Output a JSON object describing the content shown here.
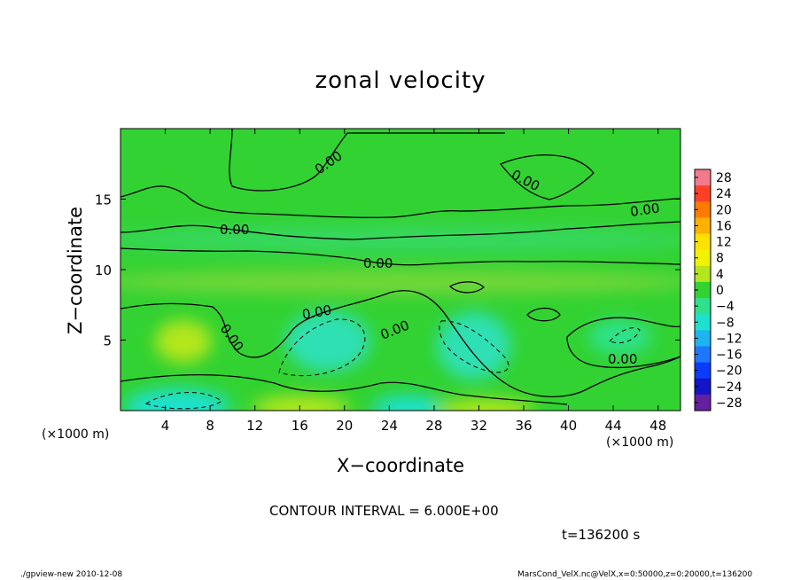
{
  "chart_data": {
    "type": "heatmap",
    "title": "zonal velocity",
    "xlabel": "X−coordinate",
    "ylabel": "Z−coordinate",
    "x_unit_label": "(×1000 m)",
    "xlim": [
      0,
      50
    ],
    "ylim": [
      0,
      20
    ],
    "xticks": [
      4,
      8,
      12,
      16,
      20,
      24,
      28,
      32,
      36,
      40,
      44,
      48
    ],
    "yticks": [
      5,
      10,
      15
    ],
    "contour_interval_text": "CONTOUR INTERVAL = 6.000E+00",
    "contour_labels": [
      "0.00",
      "0.00",
      "0.00",
      "0.00",
      "0.00",
      "0.00",
      "0.00",
      "0.00",
      "0.00"
    ],
    "colorbar": {
      "ticks": [
        28,
        24,
        20,
        16,
        12,
        8,
        4,
        0,
        -4,
        -8,
        -12,
        -16,
        -20,
        -24,
        -28
      ],
      "tick_labels": [
        "28",
        "24",
        "20",
        "16",
        "12",
        "8",
        "4",
        "0",
        "−4",
        "−8",
        "−12",
        "−16",
        "−20",
        "−24",
        "−28"
      ],
      "colors": [
        "#f27a8a",
        "#ff4026",
        "#ff7a00",
        "#ffb000",
        "#ffe100",
        "#f2f200",
        "#b4e61e",
        "#32d232",
        "#2ee18a",
        "#1ee1cd",
        "#1eb4f0",
        "#1e78ff",
        "#0a3cff",
        "#1414c8",
        "#6420a0"
      ]
    },
    "time_text": "t=136200 s"
  },
  "footer": {
    "left": "./gpview-new   2010-12-08",
    "right": "MarsCond_VelX.nc@VelX,x=0:50000,z=0:20000,t=136200"
  }
}
